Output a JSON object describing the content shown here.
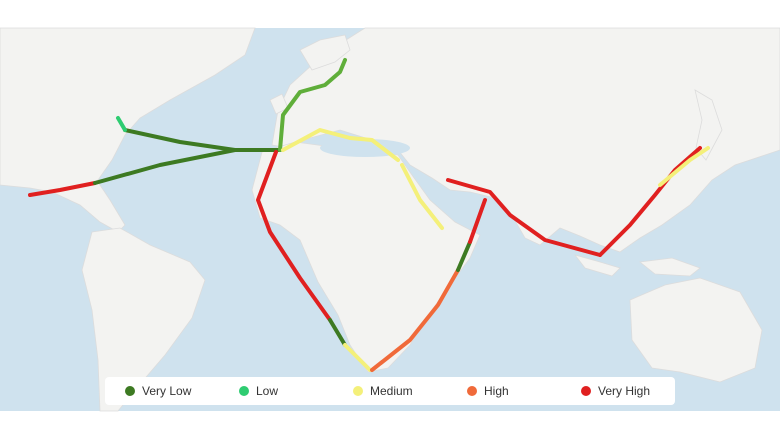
{
  "legend": {
    "items": [
      {
        "label": "Very Low",
        "color": "#3d7a22"
      },
      {
        "label": "Low",
        "color": "#2ecc71"
      },
      {
        "label": "Medium",
        "color": "#f4f07a"
      },
      {
        "label": "High",
        "color": "#f06a3a"
      },
      {
        "label": "Very High",
        "color": "#e02020"
      }
    ]
  }
}
